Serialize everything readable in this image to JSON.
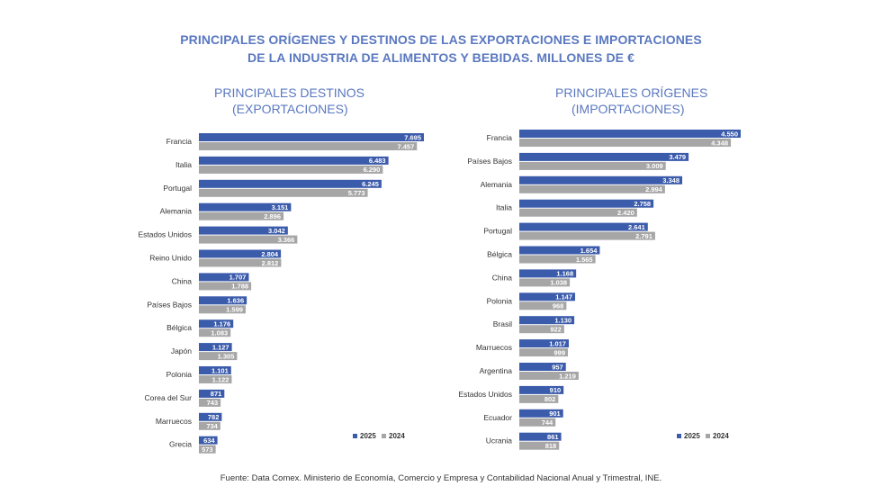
{
  "title_line1": "PRINCIPALES ORÍGENES Y DESTINOS DE LAS EXPORTACIONES E IMPORTACIONES",
  "title_line2": "DE LA INDUSTRIA DE ALIMENTOS Y BEBIDAS. MILLONES DE €",
  "source": "Fuente: Data Comex. Ministerio de Economía, Comercio y Empresa y Contabilidad Nacional Anual y Trimestral, INE.",
  "colors": {
    "series_2025": "#3b5bab",
    "series_2024": "#a6a6a6",
    "title": "#5a78c0"
  },
  "chart_data": [
    {
      "type": "bar",
      "orientation": "horizontal",
      "title_line1": "PRINCIPALES DESTINOS",
      "title_line2": "(EXPORTACIONES)",
      "categories": [
        "Francia",
        "Italia",
        "Portugal",
        "Alemania",
        "Estados Unidos",
        "Reino Unido",
        "China",
        "Países Bajos",
        "Bélgica",
        "Japón",
        "Polonia",
        "Corea del Sur",
        "Marruecos",
        "Grecia"
      ],
      "series": [
        {
          "name": "2025",
          "values": [
            7695,
            6483,
            6245,
            3151,
            3042,
            2804,
            1707,
            1636,
            1176,
            1127,
            1101,
            871,
            782,
            634
          ],
          "labels": [
            "7.695",
            "6.483",
            "6.245",
            "3.151",
            "3.042",
            "2.804",
            "1.707",
            "1.636",
            "1.176",
            "1.127",
            "1.101",
            "871",
            "782",
            "634"
          ]
        },
        {
          "name": "2024",
          "values": [
            7457,
            6290,
            5773,
            2896,
            3366,
            2812,
            1788,
            1599,
            1083,
            1305,
            1122,
            743,
            734,
            573
          ],
          "labels": [
            "7.457",
            "6.290",
            "5.773",
            "2.896",
            "3.366",
            "2.812",
            "1.788",
            "1.599",
            "1.083",
            "1.305",
            "1.122",
            "743",
            "734",
            "573"
          ]
        }
      ],
      "legend": {
        "position": "bottom-right",
        "items": [
          "2025",
          "2024"
        ]
      },
      "grid": false
    },
    {
      "type": "bar",
      "orientation": "horizontal",
      "title_line1": "PRINCIPALES ORÍGENES",
      "title_line2": "(IMPORTACIONES)",
      "categories": [
        "Francia",
        "Países Bajos",
        "Alemania",
        "Italia",
        "Portugal",
        "Bélgica",
        "China",
        "Polonia",
        "Brasil",
        "Marruecos",
        "Argentina",
        "Estados Unidos",
        "Ecuador",
        "Ucrania"
      ],
      "series": [
        {
          "name": "2025",
          "values": [
            4550,
            3479,
            3348,
            2758,
            2641,
            1654,
            1168,
            1147,
            1130,
            1017,
            957,
            910,
            901,
            861
          ],
          "labels": [
            "4.550",
            "3.479",
            "3.348",
            "2.758",
            "2.641",
            "1.654",
            "1.168",
            "1.147",
            "1.130",
            "1.017",
            "957",
            "910",
            "901",
            "861"
          ]
        },
        {
          "name": "2024",
          "values": [
            4348,
            3009,
            2994,
            2420,
            2791,
            1565,
            1038,
            968,
            922,
            999,
            1219,
            802,
            744,
            818
          ],
          "labels": [
            "4.348",
            "3.009",
            "2.994",
            "2.420",
            "2.791",
            "1.565",
            "1.038",
            "968",
            "922",
            "999",
            "1.219",
            "802",
            "744",
            "818"
          ]
        }
      ],
      "legend": {
        "position": "bottom-right",
        "items": [
          "2025",
          "2024"
        ]
      },
      "grid": false
    }
  ]
}
